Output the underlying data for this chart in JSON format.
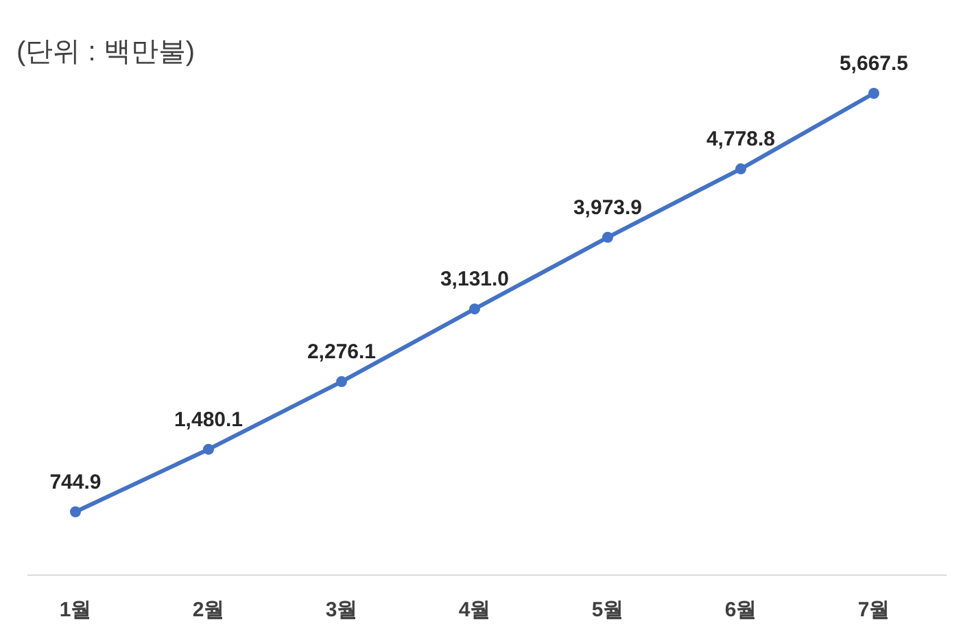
{
  "chart_data": {
    "type": "line",
    "categories": [
      "1월",
      "2월",
      "3월",
      "4월",
      "5월",
      "6월",
      "7월"
    ],
    "values": [
      744.9,
      1480.1,
      2276.1,
      3131.0,
      3973.9,
      4778.8,
      5667.5
    ],
    "value_labels": [
      "744.9",
      "1,480.1",
      "2,276.1",
      "3,131.0",
      "3,973.9",
      "4,778.8",
      "5,667.5"
    ],
    "color": "#4472c4",
    "marker": "circle",
    "annotations": [
      "(단위 : 백만불)"
    ]
  }
}
